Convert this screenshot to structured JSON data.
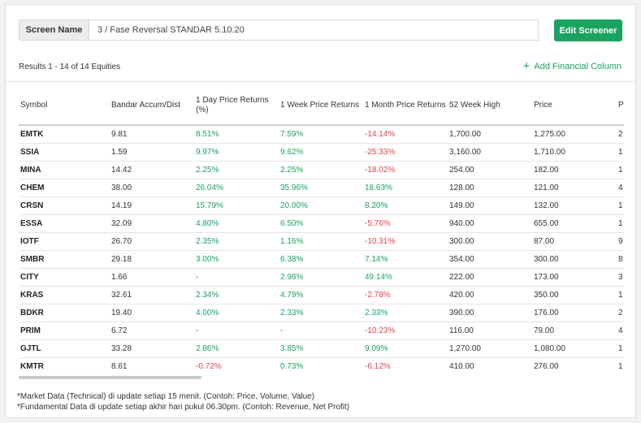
{
  "screen": {
    "label": "Screen Name",
    "value": "3 / Fase Reversal STANDAR 5.10.20"
  },
  "edit_button": "Edit Screener",
  "results_text": "Results 1 - 14 of 14 Equities",
  "add_column": "Add Financial Column",
  "columns": [
    "Symbol",
    "Bandar Accum/Dist",
    "1 Day Price Returns (%)",
    "1 Week Price Returns",
    "1 Month Price Returns",
    "52 Week High",
    "Price",
    "P"
  ],
  "rows": [
    [
      "EMTK",
      "9.81",
      "8.51%",
      "7.59%",
      "-14.14%",
      "1,700.00",
      "1,275.00",
      "2"
    ],
    [
      "SSIA",
      "1.59",
      "9.97%",
      "9.62%",
      "-25.33%",
      "3,160.00",
      "1,710.00",
      "1"
    ],
    [
      "MINA",
      "14.42",
      "2.25%",
      "2.25%",
      "-18.02%",
      "254.00",
      "182.00",
      "1"
    ],
    [
      "CHEM",
      "38.00",
      "26.04%",
      "35.96%",
      "18.63%",
      "128.00",
      "121.00",
      "4"
    ],
    [
      "CRSN",
      "14.19",
      "15.79%",
      "20.00%",
      "8.20%",
      "149.00",
      "132.00",
      "1"
    ],
    [
      "ESSA",
      "32.09",
      "4.80%",
      "6.50%",
      "-5.76%",
      "940.00",
      "655.00",
      "1"
    ],
    [
      "IOTF",
      "26.70",
      "2.35%",
      "1.16%",
      "-10.31%",
      "300.00",
      "87.00",
      "9"
    ],
    [
      "SMBR",
      "29.18",
      "3.00%",
      "6.38%",
      "7.14%",
      "354.00",
      "300.00",
      "8"
    ],
    [
      "CITY",
      "1.66",
      "-",
      "2.98%",
      "49.14%",
      "222.00",
      "173.00",
      "3"
    ],
    [
      "KRAS",
      "32.61",
      "2.34%",
      "4.79%",
      "-2.78%",
      "420.00",
      "350.00",
      "1"
    ],
    [
      "BDKR",
      "19.40",
      "4.00%",
      "2.33%",
      "2.33%",
      "390.00",
      "176.00",
      "2"
    ],
    [
      "PRIM",
      "6.72",
      "-",
      "-",
      "-10.23%",
      "116.00",
      "79.00",
      "4"
    ],
    [
      "GJTL",
      "33.28",
      "2.86%",
      "3.85%",
      "9.09%",
      "1,270.00",
      "1,080.00",
      "1"
    ],
    [
      "KMTR",
      "8.61",
      "-0.72%",
      "0.73%",
      "-6.12%",
      "410.00",
      "276.00",
      "1"
    ]
  ],
  "notes": [
    "*Market Data (Technical) di update setiap 15 menit. (Contoh: Price, Volume, Value)",
    "*Fundamental Data di update setiap akhir hari pukul 06.30pm. (Contoh: Revenue, Net Profit)"
  ],
  "colors": {
    "accent": "#1aa260",
    "negative": "#e0464e"
  }
}
